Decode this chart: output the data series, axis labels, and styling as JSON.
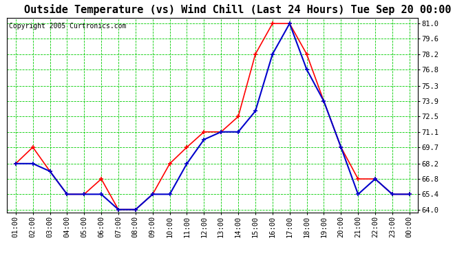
{
  "title": "Outside Temperature (vs) Wind Chill (Last 24 Hours) Tue Sep 20 00:00",
  "copyright": "Copyright 2005 Curtronics.com",
  "x_labels": [
    "01:00",
    "02:00",
    "03:00",
    "04:00",
    "05:00",
    "06:00",
    "07:00",
    "08:00",
    "09:00",
    "10:00",
    "11:00",
    "12:00",
    "13:00",
    "14:00",
    "15:00",
    "16:00",
    "17:00",
    "18:00",
    "19:00",
    "20:00",
    "21:00",
    "22:00",
    "23:00",
    "00:00"
  ],
  "outside_temp": [
    68.2,
    69.7,
    67.5,
    65.4,
    65.4,
    66.8,
    64.0,
    64.0,
    65.4,
    68.2,
    69.7,
    71.1,
    71.1,
    72.5,
    78.2,
    81.0,
    81.0,
    78.2,
    73.9,
    69.7,
    66.8,
    66.8,
    65.4,
    65.4
  ],
  "wind_chill": [
    68.2,
    68.2,
    67.5,
    65.4,
    65.4,
    65.4,
    64.0,
    64.0,
    65.4,
    65.4,
    68.2,
    70.4,
    71.1,
    71.1,
    73.0,
    78.2,
    81.0,
    76.8,
    73.9,
    69.7,
    65.4,
    66.8,
    65.4,
    65.4
  ],
  "temp_color": "#ff0000",
  "chill_color": "#0000cc",
  "bg_color": "#ffffff",
  "grid_color": "#00cc00",
  "y_ticks": [
    64.0,
    65.4,
    66.8,
    68.2,
    69.7,
    71.1,
    72.5,
    73.9,
    75.3,
    76.8,
    78.2,
    79.6,
    81.0
  ],
  "ylim": [
    63.7,
    81.5
  ],
  "title_fontsize": 11,
  "tick_fontsize": 7.5,
  "copyright_fontsize": 7
}
